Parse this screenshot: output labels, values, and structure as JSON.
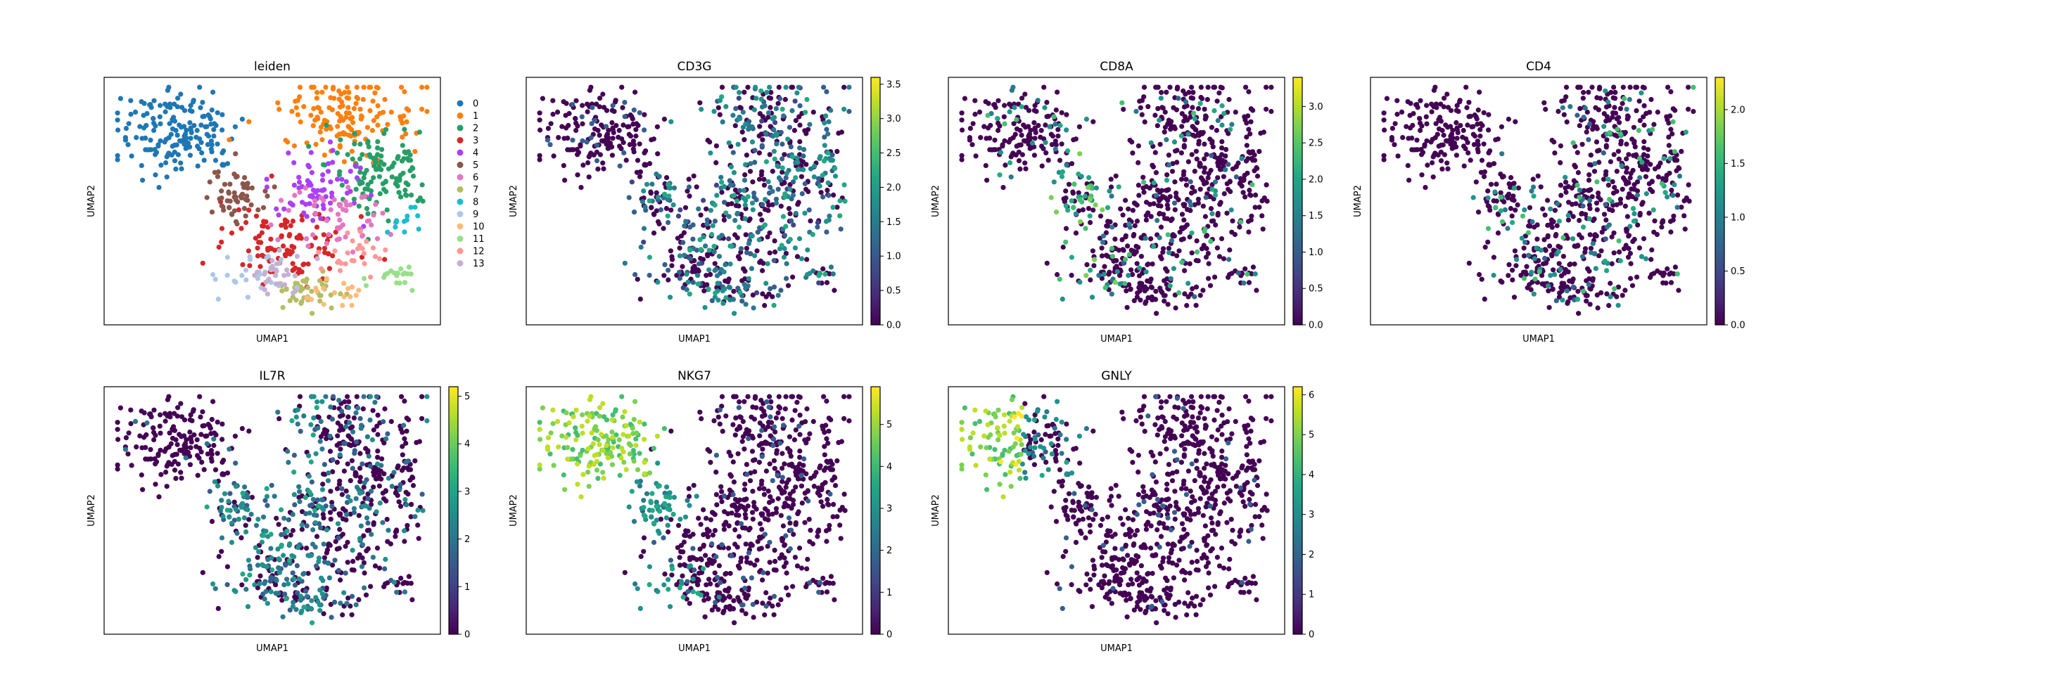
{
  "colors": {
    "leiden": [
      "#1f77b4",
      "#ff7f0e",
      "#279e68",
      "#d62728",
      "#aa40fc",
      "#8c564b",
      "#e377c2",
      "#b5bd61",
      "#17becf",
      "#aec7e8",
      "#ffbb78",
      "#98df8a",
      "#ff9896",
      "#c5b0d5"
    ],
    "viridis": [
      "#440154",
      "#482475",
      "#414487",
      "#355f8d",
      "#2a788e",
      "#21918c",
      "#22a884",
      "#44bf70",
      "#7ad151",
      "#bddf26",
      "#fde725"
    ]
  },
  "chart_data": [
    {
      "type": "scatter",
      "name": "leiden",
      "title": "leiden",
      "xlabel": "UMAP1",
      "ylabel": "UMAP2",
      "grid": false,
      "legend": {
        "placement": "right",
        "entries": [
          "0",
          "1",
          "2",
          "3",
          "4",
          "5",
          "6",
          "7",
          "8",
          "9",
          "10",
          "11",
          "12",
          "13"
        ]
      }
    },
    {
      "type": "scatter",
      "name": "CD3G",
      "title": "CD3G",
      "xlabel": "UMAP1",
      "ylabel": "UMAP2",
      "grid": false,
      "colorbar": {
        "vmin": 0,
        "vmax": 3.6,
        "ticks": [
          0.0,
          0.5,
          1.0,
          1.5,
          2.0,
          2.5,
          3.0,
          3.5
        ],
        "labels": [
          "0.0",
          "0.5",
          "1.0",
          "1.5",
          "2.0",
          "2.5",
          "3.0",
          "3.5"
        ]
      }
    },
    {
      "type": "scatter",
      "name": "CD8A",
      "title": "CD8A",
      "xlabel": "UMAP1",
      "ylabel": "UMAP2",
      "grid": false,
      "colorbar": {
        "vmin": 0,
        "vmax": 3.4,
        "ticks": [
          0.0,
          0.5,
          1.0,
          1.5,
          2.0,
          2.5,
          3.0
        ],
        "labels": [
          "0.0",
          "0.5",
          "1.0",
          "1.5",
          "2.0",
          "2.5",
          "3.0"
        ]
      }
    },
    {
      "type": "scatter",
      "name": "CD4",
      "title": "CD4",
      "xlabel": "UMAP1",
      "ylabel": "UMAP2",
      "grid": false,
      "colorbar": {
        "vmin": 0,
        "vmax": 2.3,
        "ticks": [
          0.0,
          0.5,
          1.0,
          1.5,
          2.0
        ],
        "labels": [
          "0.0",
          "0.5",
          "1.0",
          "1.5",
          "2.0"
        ]
      }
    },
    {
      "type": "scatter",
      "name": "IL7R",
      "title": "IL7R",
      "xlabel": "UMAP1",
      "ylabel": "UMAP2",
      "grid": false,
      "colorbar": {
        "vmin": 0,
        "vmax": 5.2,
        "ticks": [
          0,
          1,
          2,
          3,
          4,
          5
        ],
        "labels": [
          "0",
          "1",
          "2",
          "3",
          "4",
          "5"
        ]
      }
    },
    {
      "type": "scatter",
      "name": "NKG7",
      "title": "NKG7",
      "xlabel": "UMAP1",
      "ylabel": "UMAP2",
      "grid": false,
      "colorbar": {
        "vmin": 0,
        "vmax": 5.9,
        "ticks": [
          0,
          1,
          2,
          3,
          4,
          5
        ],
        "labels": [
          "0",
          "1",
          "2",
          "3",
          "4",
          "5"
        ]
      }
    },
    {
      "type": "scatter",
      "name": "GNLY",
      "title": "GNLY",
      "xlabel": "UMAP1",
      "ylabel": "UMAP2",
      "grid": false,
      "colorbar": {
        "vmin": 0,
        "vmax": 6.2,
        "ticks": [
          0,
          1,
          2,
          3,
          4,
          5,
          6
        ],
        "labels": [
          "0",
          "1",
          "2",
          "3",
          "4",
          "5",
          "6"
        ]
      }
    }
  ]
}
